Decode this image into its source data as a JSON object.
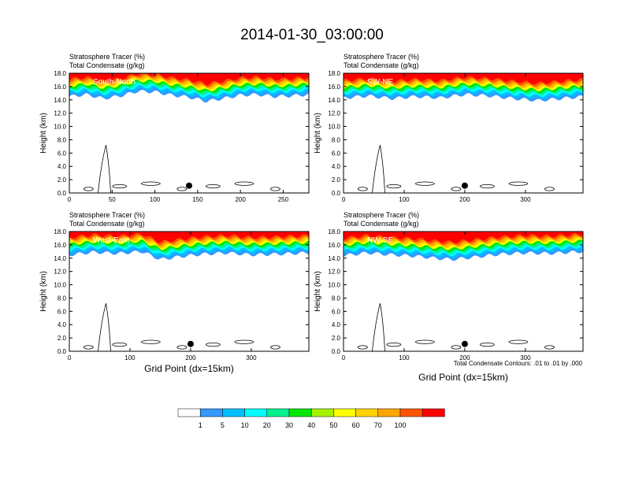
{
  "figure": {
    "title": "2014-01-30_03:00:00",
    "xlabel": "Grid Point (dx=15km)",
    "ylabel": "Height (km)",
    "footnote": "Total Condensate Contours: .01 to .01 by .000"
  },
  "colorbar": {
    "labels": [
      "1",
      "5",
      "10",
      "20",
      "30",
      "40",
      "50",
      "60",
      "70",
      "100"
    ],
    "colors": [
      "#ffffff",
      "#3399ff",
      "#00bfff",
      "#00ffff",
      "#00f28f",
      "#00e600",
      "#a6f200",
      "#ffff00",
      "#ffd200",
      "#ffa500",
      "#ff5500",
      "#ff0000"
    ]
  },
  "chart_data": [
    {
      "type": "heatmap",
      "name": "panel-south-north",
      "title": "Stratosphere Tracer   (%)",
      "subtitle": "Total Condensate   (g/kg)",
      "cross_section_label": "South-North",
      "xlim": [
        0,
        280
      ],
      "ylim": [
        0,
        18
      ],
      "xticks": [
        0,
        50,
        100,
        150,
        200,
        250
      ],
      "yticks": [
        0,
        2,
        4,
        6,
        8,
        10,
        12,
        14,
        16,
        18
      ],
      "tracer_base_km": [
        [
          0,
          14.5
        ],
        [
          20,
          14.8
        ],
        [
          40,
          14.2
        ],
        [
          60,
          14.6
        ],
        [
          80,
          15.3
        ],
        [
          100,
          15.2
        ],
        [
          120,
          14.7
        ],
        [
          140,
          14.4
        ],
        [
          160,
          13.8
        ],
        [
          180,
          14.2
        ],
        [
          200,
          14.7
        ],
        [
          220,
          14.8
        ],
        [
          240,
          14.5
        ],
        [
          260,
          14.6
        ],
        [
          280,
          14.8
        ]
      ],
      "marker": {
        "x": 140,
        "y": 1.1
      }
    },
    {
      "type": "heatmap",
      "name": "panel-sw-ne",
      "title": "Stratosphere Tracer   (%)",
      "subtitle": "Total Condensate   (g/kg)",
      "cross_section_label": "SW-NE",
      "xlim": [
        0,
        395
      ],
      "ylim": [
        0,
        18
      ],
      "xticks": [
        0,
        100,
        200,
        300
      ],
      "yticks": [
        0,
        2,
        4,
        6,
        8,
        10,
        12,
        14,
        16,
        18
      ],
      "tracer_base_km": [
        [
          0,
          14.3
        ],
        [
          40,
          14.6
        ],
        [
          80,
          14.2
        ],
        [
          120,
          14.5
        ],
        [
          160,
          14.3
        ],
        [
          200,
          14.8
        ],
        [
          240,
          14.6
        ],
        [
          280,
          14.2
        ],
        [
          320,
          13.9
        ],
        [
          360,
          14.2
        ],
        [
          395,
          14.5
        ]
      ],
      "marker": {
        "x": 200,
        "y": 1.1
      }
    },
    {
      "type": "heatmap",
      "name": "panel-west-east",
      "title": "Stratosphere Tracer   (%)",
      "subtitle": "Total Condensate   (g/kg)",
      "cross_section_label": "West-East",
      "xlim": [
        0,
        395
      ],
      "ylim": [
        0,
        18
      ],
      "xticks": [
        0,
        100,
        200,
        300
      ],
      "yticks": [
        0,
        2,
        4,
        6,
        8,
        10,
        12,
        14,
        16,
        18
      ],
      "tracer_base_km": [
        [
          0,
          14.5
        ],
        [
          40,
          14.9
        ],
        [
          80,
          14.7
        ],
        [
          120,
          15.0
        ],
        [
          150,
          13.8
        ],
        [
          180,
          14.2
        ],
        [
          220,
          14.6
        ],
        [
          260,
          14.8
        ],
        [
          300,
          14.5
        ],
        [
          340,
          14.6
        ],
        [
          395,
          14.8
        ]
      ],
      "marker": {
        "x": 200,
        "y": 1.1
      }
    },
    {
      "type": "heatmap",
      "name": "panel-nw-se",
      "title": "Stratosphere Tracer   (%)",
      "subtitle": "Total Condensate   (g/kg)",
      "cross_section_label": "NW-SE",
      "xlim": [
        0,
        395
      ],
      "ylim": [
        0,
        18
      ],
      "xticks": [
        0,
        100,
        200,
        300
      ],
      "yticks": [
        0,
        2,
        4,
        6,
        8,
        10,
        12,
        14,
        16,
        18
      ],
      "tracer_base_km": [
        [
          0,
          14.4
        ],
        [
          40,
          14.8
        ],
        [
          80,
          14.5
        ],
        [
          120,
          14.3
        ],
        [
          150,
          14.0
        ],
        [
          180,
          13.8
        ],
        [
          220,
          14.2
        ],
        [
          260,
          14.6
        ],
        [
          300,
          14.8
        ],
        [
          340,
          14.7
        ],
        [
          395,
          15.0
        ]
      ],
      "marker": {
        "x": 200,
        "y": 1.1
      }
    }
  ]
}
